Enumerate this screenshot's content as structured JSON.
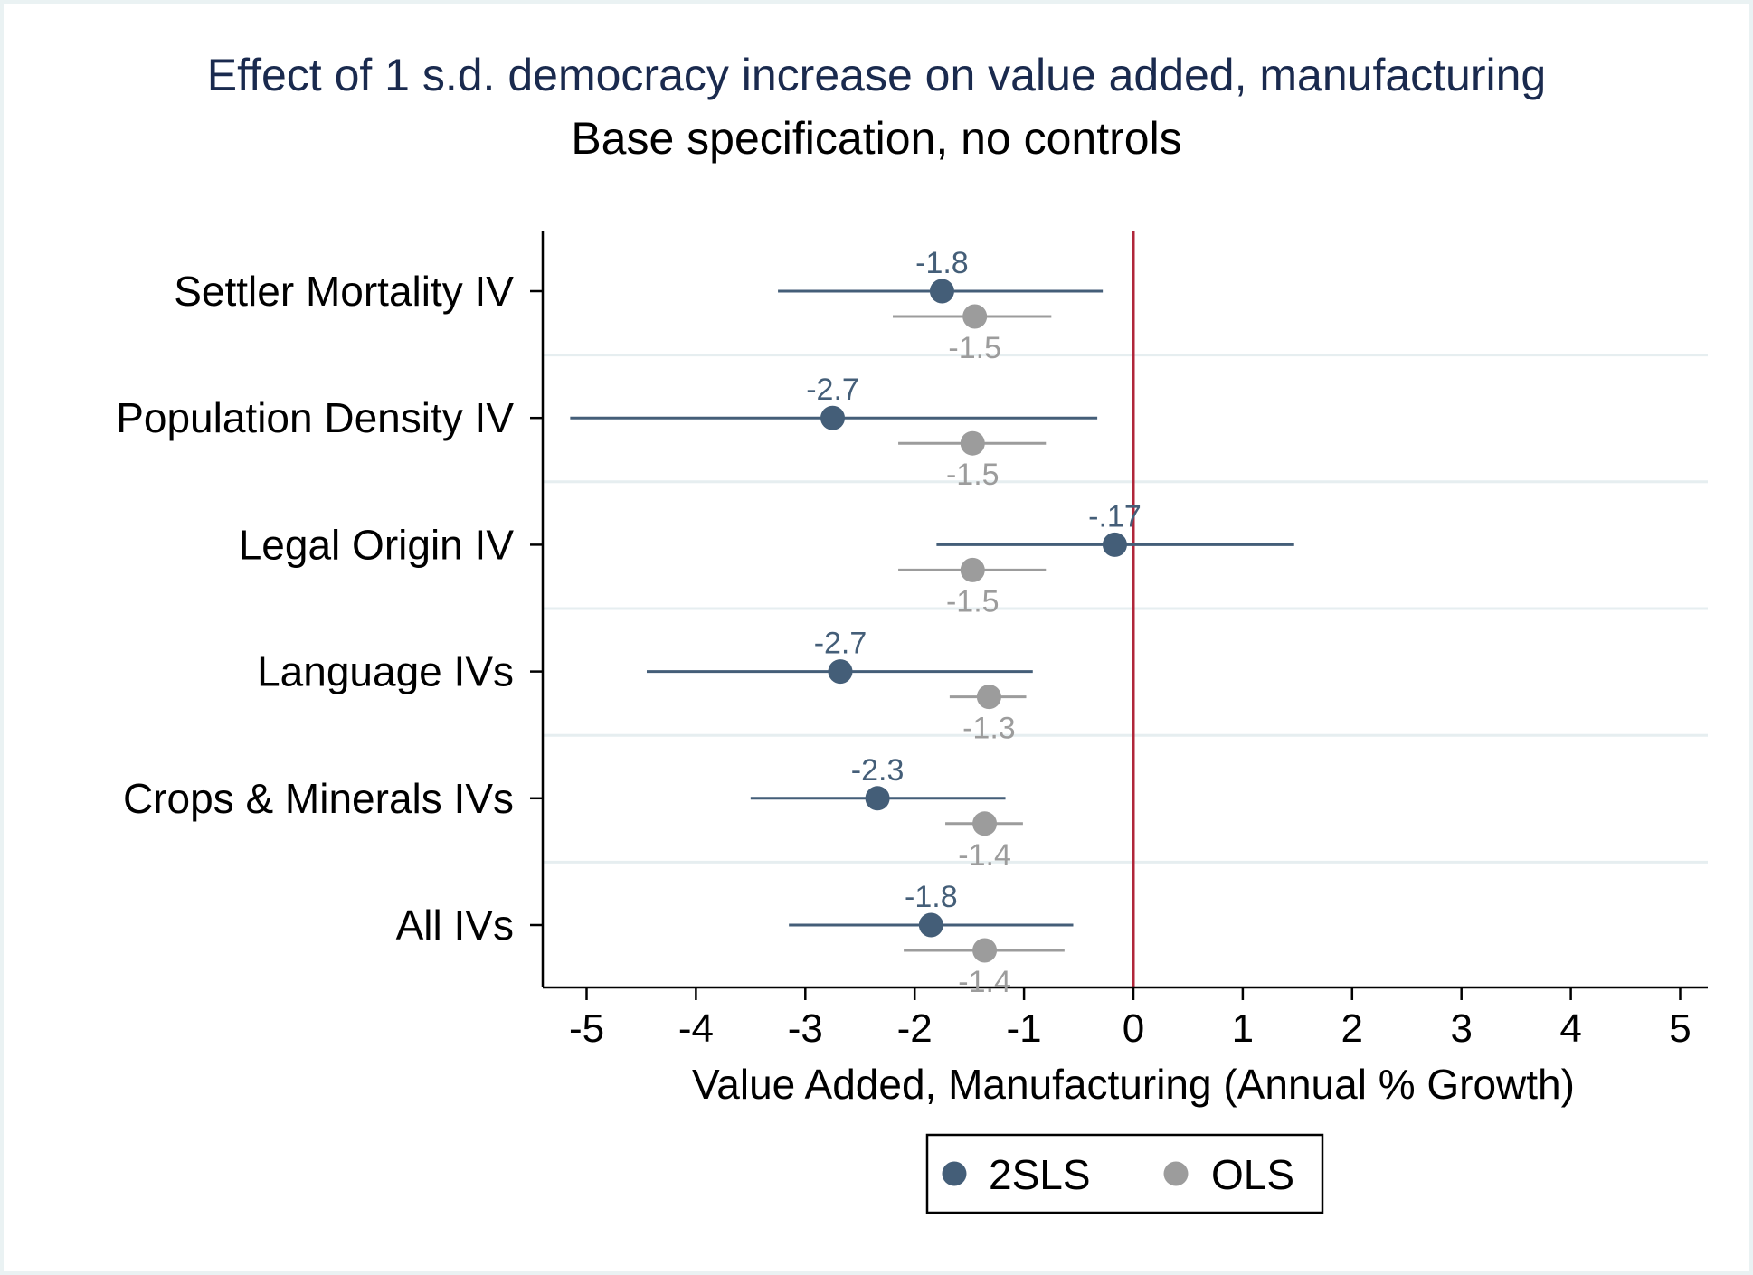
{
  "chart_data": {
    "type": "coefficient-plot",
    "title": "Effect of 1 s.d. democracy increase on value added, manufacturing",
    "subtitle": "Base specification, no controls",
    "xlabel": "Value Added, Manufacturing (Annual % Growth)",
    "xlim": [
      -5.4,
      5.3
    ],
    "xticks": [
      -5,
      -4,
      -3,
      -2,
      -1,
      0,
      1,
      2,
      3,
      4,
      5
    ],
    "xtick_labels": [
      "-5",
      "-4",
      "-3",
      "-2",
      "-1",
      "0",
      "1",
      "2",
      "3",
      "4",
      "5"
    ],
    "reference_line": {
      "x": 0,
      "color": "#b0263a"
    },
    "categories": [
      "Settler Mortality IV",
      "Population Density IV",
      "Legal Origin IV",
      "Language IVs",
      "Crops & Minerals IVs",
      "All IVs"
    ],
    "series": [
      {
        "name": "2SLS",
        "color": "#445e78",
        "estimates": [
          -1.75,
          -2.75,
          -0.17,
          -2.68,
          -2.34,
          -1.85
        ],
        "ci_low": [
          -3.25,
          -5.15,
          -1.8,
          -4.45,
          -3.5,
          -3.15
        ],
        "ci_high": [
          -0.28,
          -0.33,
          1.47,
          -0.92,
          -1.17,
          -0.55
        ],
        "labels": [
          "-1.8",
          "-2.7",
          "-.17",
          "-2.7",
          "-2.3",
          "-1.8"
        ]
      },
      {
        "name": "OLS",
        "color": "#9c9c9c",
        "estimates": [
          -1.45,
          -1.47,
          -1.47,
          -1.32,
          -1.36,
          -1.36
        ],
        "ci_low": [
          -2.2,
          -2.15,
          -2.15,
          -1.68,
          -1.72,
          -2.1
        ],
        "ci_high": [
          -0.75,
          -0.8,
          -0.8,
          -0.98,
          -1.01,
          -0.63
        ],
        "labels": [
          "-1.5",
          "-1.5",
          "-1.5",
          "-1.3",
          "-1.4",
          "-1.4"
        ]
      }
    ],
    "grid": "horizontal-between-rows",
    "legend_position": "bottom-center"
  }
}
